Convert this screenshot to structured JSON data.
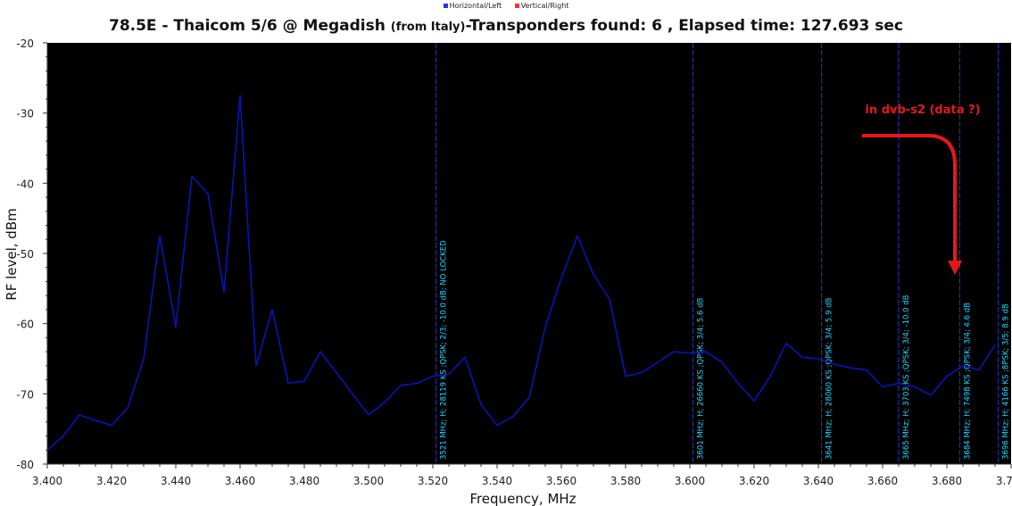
{
  "legend": [
    {
      "label": "Horizontal/Left",
      "color": "#2233ff"
    },
    {
      "label": "Vertical/Right",
      "color": "#ee3333"
    }
  ],
  "title": {
    "part1": "78.5E - Thaicom 5/6 @ Megadish",
    "part2": "(from Italy)",
    "part3": "-Transponders found: 6 , Elapsed time: 127.693 sec"
  },
  "annotation": {
    "text": "in dvb-s2  (data ?)",
    "color": "#e3181c"
  },
  "chart_data": {
    "type": "line",
    "xlabel": "Frequency, MHz",
    "ylabel": "RF level, dBm",
    "xlim": [
      3.4,
      3.7
    ],
    "ylim": [
      -80,
      -20
    ],
    "xticks": [
      3.4,
      3.42,
      3.44,
      3.46,
      3.48,
      3.5,
      3.52,
      3.54,
      3.56,
      3.58,
      3.6,
      3.62,
      3.64,
      3.66,
      3.68,
      3.7
    ],
    "xtick_labels": [
      "3.400",
      "3.420",
      "3.440",
      "3.460",
      "3.480",
      "3.500",
      "3.520",
      "3.540",
      "3.560",
      "3.580",
      "3.600",
      "3.620",
      "3.640",
      "3.660",
      "3.680",
      "3.700"
    ],
    "yticks": [
      -80,
      -70,
      -60,
      -50,
      -40,
      -30,
      -20
    ],
    "ytick_labels": [
      "-80",
      "-70",
      "-60",
      "-50",
      "-40",
      "-30",
      "-20"
    ],
    "grid": false,
    "series": [
      {
        "name": "Horizontal/Left",
        "color": "#0a14b4",
        "x": [
          3.4,
          3.405,
          3.41,
          3.415,
          3.42,
          3.425,
          3.43,
          3.435,
          3.44,
          3.445,
          3.45,
          3.455,
          3.46,
          3.465,
          3.47,
          3.475,
          3.48,
          3.485,
          3.49,
          3.495,
          3.5,
          3.505,
          3.51,
          3.515,
          3.52,
          3.525,
          3.53,
          3.535,
          3.54,
          3.545,
          3.55,
          3.555,
          3.56,
          3.565,
          3.57,
          3.575,
          3.58,
          3.585,
          3.59,
          3.595,
          3.6,
          3.605,
          3.61,
          3.615,
          3.62,
          3.625,
          3.63,
          3.635,
          3.64,
          3.645,
          3.65,
          3.655,
          3.66,
          3.665,
          3.67,
          3.675,
          3.68,
          3.685,
          3.69,
          3.695
        ],
        "values": [
          -78,
          -76,
          -73,
          -73.8,
          -74.5,
          -72,
          -65,
          -47.5,
          -60.5,
          -39,
          -41.5,
          -55.5,
          -27.5,
          -66,
          -58,
          -68.5,
          -68.2,
          -64,
          -67,
          -70,
          -73,
          -71.2,
          -68.8,
          -68.5,
          -67.5,
          -67.2,
          -64.8,
          -71.5,
          -74.5,
          -73.2,
          -70.5,
          -60.5,
          -53.5,
          -47.5,
          -53,
          -56.5,
          -67.5,
          -67,
          -65.5,
          -64,
          -64.2,
          -64,
          -65.5,
          -68.5,
          -71,
          -67.5,
          -62.8,
          -64.8,
          -65,
          -65.8,
          -66.3,
          -66.6,
          -69,
          -68.5,
          -69,
          -70.2,
          -67.5,
          -66,
          -66.6,
          -63
        ]
      }
    ],
    "transponders": [
      {
        "freq": 3.521,
        "label": "3521 MHz; H; 28119 KS ;QPSK; 2/3; -10.0 dB; NO LOCKED"
      },
      {
        "freq": 3.601,
        "label": "3601 MHz; H; 26660 KS ;QPSK; 3/4; 5.6 dB"
      },
      {
        "freq": 3.641,
        "label": "3641 MHz; H; 28060 KS ;QPSK; 3/4; 5.9 dB"
      },
      {
        "freq": 3.665,
        "label": "3665 MHz; H; 3703 KS ;QPSK; 3/4; -10.0 dB"
      },
      {
        "freq": 3.684,
        "label": "3684 MHz; H; 7498 KS ;QPSK; 3/4; 4.6 dB"
      },
      {
        "freq": 3.696,
        "label": "3696 MHz; H; 4166 KS ;8PSK; 3/5; 8.9 dB"
      }
    ]
  }
}
